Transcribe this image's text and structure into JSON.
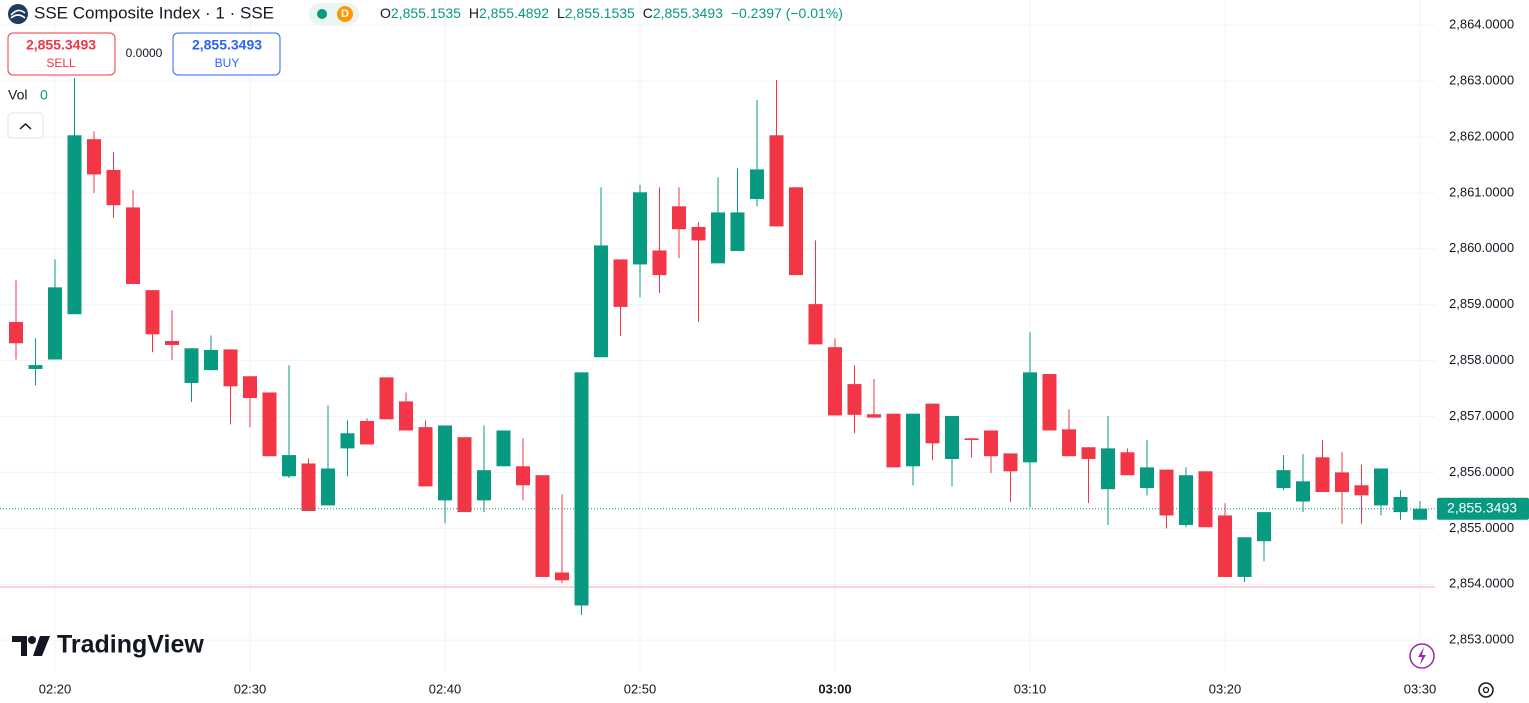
{
  "header": {
    "title": "SSE Composite Index · 1 · SSE",
    "badge": "D",
    "ohlc": [
      {
        "key": "O",
        "value": "2,855.1535"
      },
      {
        "key": "H",
        "value": "2,855.4892"
      },
      {
        "key": "L",
        "value": "2,855.1535"
      },
      {
        "key": "C",
        "value": "2,855.3493"
      }
    ],
    "change": "−0.2397 (−0.01%)"
  },
  "trade": {
    "sell_price": "2,855.3493",
    "sell": "SELL",
    "spread": "0.0000",
    "buy_price": "2,855.3493",
    "buy": "BUY"
  },
  "volume": {
    "label": "Vol",
    "value": 0
  },
  "logo": "TradingView",
  "chart_data": {
    "type": "candlestick",
    "categories": [
      null,
      null,
      "02:20",
      null,
      null,
      null,
      null,
      null,
      null,
      null,
      null,
      null,
      "02:30",
      null,
      null,
      null,
      null,
      null,
      null,
      null,
      null,
      null,
      "02:40",
      null,
      null,
      null,
      null,
      null,
      null,
      null,
      null,
      null,
      "02:50",
      null,
      null,
      null,
      null,
      null,
      null,
      null,
      null,
      null,
      "03:00",
      null,
      null,
      null,
      null,
      null,
      null,
      null,
      null,
      null,
      "03:10",
      null,
      null,
      null,
      null,
      null,
      null,
      null,
      null,
      null,
      "03:20",
      null,
      null,
      null,
      null,
      null,
      null,
      null,
      null,
      null,
      "03:30"
    ],
    "open": [
      2858.69,
      2857.85,
      2858.02,
      2858.83,
      2861.96,
      2861.41,
      2860.74,
      2859.26,
      2858.35,
      2857.6,
      2857.83,
      2858.2,
      2857.72,
      2857.43,
      2855.93,
      2856.16,
      2855.41,
      2856.43,
      2856.92,
      2857.7,
      2857.27,
      2856.81,
      2855.5,
      2856.63,
      2855.5,
      2856.11,
      2856.11,
      2855.95,
      2854.21,
      2853.62,
      2858.06,
      2859.81,
      2859.72,
      2859.97,
      2860.76,
      2860.39,
      2859.74,
      2859.96,
      2860.89,
      2862.03,
      2861.1,
      2859.01,
      2858.24,
      2857.58,
      2857.04,
      2857.05,
      2856.11,
      2857.23,
      2856.24,
      2856.61,
      2856.75,
      2856.34,
      2856.18,
      2857.76,
      2856.77,
      2856.45,
      2855.7,
      2856.36,
      2855.72,
      2856.05,
      2855.06,
      2856.02,
      2855.23,
      2854.13,
      2854.77,
      2855.72,
      2855.48,
      2856.27,
      2856.0,
      2855.77,
      2855.41,
      2855.29,
      2855.1535
    ],
    "high": [
      2859.44,
      2858.4,
      2859.81,
      2863.05,
      2862.1,
      2861.73,
      2861.05,
      2859.26,
      2858.9,
      2858.22,
      2858.45,
      2858.2,
      2857.72,
      2857.43,
      2857.92,
      2856.25,
      2857.2,
      2856.93,
      2856.97,
      2857.7,
      2857.43,
      2856.93,
      2856.84,
      2856.63,
      2856.84,
      2856.75,
      2856.61,
      2855.95,
      2855.61,
      2857.79,
      2861.1,
      2859.81,
      2861.14,
      2861.1,
      2861.1,
      2860.48,
      2861.28,
      2861.44,
      2862.66,
      2863.02,
      2861.1,
      2860.15,
      2858.4,
      2857.92,
      2857.67,
      2857.05,
      2857.05,
      2857.23,
      2857.01,
      2856.61,
      2856.75,
      2856.34,
      2858.51,
      2857.76,
      2857.13,
      2856.45,
      2857.01,
      2856.43,
      2856.58,
      2856.05,
      2856.09,
      2856.02,
      2855.45,
      2854.84,
      2855.29,
      2856.31,
      2856.33,
      2856.58,
      2856.36,
      2856.14,
      2856.07,
      2855.68,
      2855.4892
    ],
    "low": [
      2858.02,
      2857.56,
      2858.02,
      2858.83,
      2861.0,
      2860.55,
      2859.37,
      2858.15,
      2858.01,
      2857.26,
      2857.83,
      2856.86,
      2856.81,
      2856.29,
      2855.9,
      2855.31,
      2855.41,
      2855.93,
      2856.5,
      2856.95,
      2856.75,
      2855.75,
      2855.09,
      2855.29,
      2855.29,
      2856.11,
      2855.5,
      2854.13,
      2854.02,
      2853.45,
      2858.06,
      2858.44,
      2859.13,
      2859.21,
      2859.83,
      2858.69,
      2859.74,
      2859.96,
      2860.76,
      2860.4,
      2859.53,
      2858.29,
      2857.02,
      2856.7,
      2856.98,
      2856.09,
      2855.77,
      2856.22,
      2855.75,
      2856.27,
      2855.99,
      2855.47,
      2855.38,
      2856.75,
      2856.29,
      2855.45,
      2855.06,
      2855.95,
      2855.59,
      2855.0,
      2855.02,
      2855.02,
      2854.13,
      2854.04,
      2854.41,
      2855.68,
      2855.29,
      2855.65,
      2855.08,
      2855.08,
      2855.23,
      2855.15,
      2855.1535
    ],
    "close": [
      2858.31,
      2857.92,
      2859.31,
      2862.03,
      2861.33,
      2860.78,
      2859.37,
      2858.47,
      2858.28,
      2858.22,
      2858.19,
      2857.54,
      2857.33,
      2856.29,
      2856.31,
      2855.31,
      2856.07,
      2856.7,
      2856.5,
      2856.95,
      2856.75,
      2855.75,
      2856.84,
      2855.29,
      2856.04,
      2856.75,
      2855.77,
      2854.13,
      2854.07,
      2857.79,
      2860.06,
      2858.96,
      2861.01,
      2859.53,
      2860.35,
      2860.15,
      2860.65,
      2860.65,
      2861.42,
      2860.4,
      2859.53,
      2858.29,
      2857.02,
      2857.03,
      2856.98,
      2856.09,
      2857.05,
      2856.52,
      2857.01,
      2856.58,
      2856.29,
      2856.02,
      2857.79,
      2856.75,
      2856.29,
      2856.24,
      2856.43,
      2855.95,
      2856.09,
      2855.23,
      2855.95,
      2855.02,
      2854.13,
      2854.84,
      2855.29,
      2856.04,
      2855.84,
      2855.65,
      2855.65,
      2855.59,
      2856.07,
      2855.56,
      2855.3493
    ],
    "up_color": "#089981",
    "down_color": "#f23645",
    "ylim": [
      2852.43,
      2864.45
    ],
    "yticks": [
      {
        "value": 2853,
        "label": "2,853.0000"
      },
      {
        "value": 2854,
        "label": "2,854.0000"
      },
      {
        "value": 2855,
        "label": "2,855.0000"
      },
      {
        "value": 2856,
        "label": "2,856.0000"
      },
      {
        "value": 2857,
        "label": "2,857.0000"
      },
      {
        "value": 2858,
        "label": "2,858.0000"
      },
      {
        "value": 2859,
        "label": "2,859.0000"
      },
      {
        "value": 2860,
        "label": "2,860.0000"
      },
      {
        "value": 2861,
        "label": "2,861.0000"
      },
      {
        "value": 2862,
        "label": "2,862.0000"
      },
      {
        "value": 2863,
        "label": "2,863.0000"
      },
      {
        "value": 2864,
        "label": "2,864.0000"
      }
    ],
    "grid": true,
    "last_price": {
      "value": 2855.3493,
      "label": "2,855.3493"
    },
    "reference_line": 2853.95
  }
}
